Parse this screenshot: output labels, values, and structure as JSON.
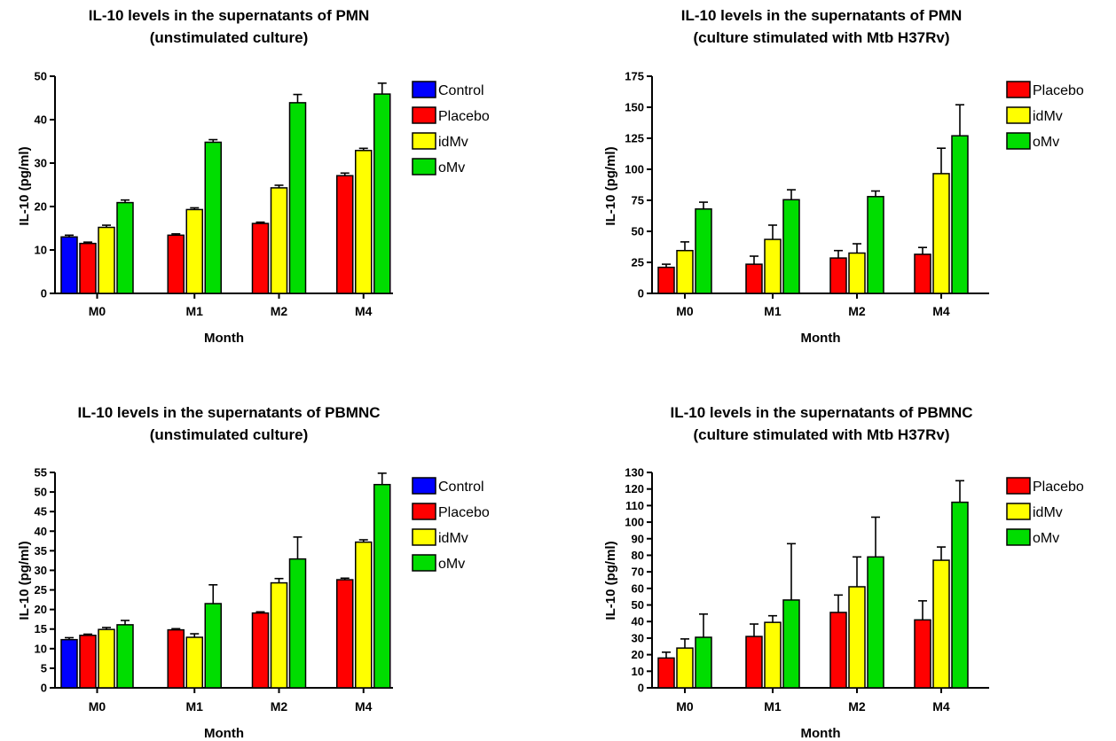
{
  "chart_data": [
    {
      "type": "bar",
      "title": "IL-10 levels in the supernatants of  PMN",
      "subtitle": "(unstimulated culture)",
      "xlabel": "Month",
      "ylabel": "IL-10 (pg/ml)",
      "categories": [
        "M0",
        "M1",
        "M2",
        "M4"
      ],
      "ylim": [
        0,
        50
      ],
      "yticks": [
        0,
        10,
        20,
        30,
        40,
        50
      ],
      "legend_position": "right",
      "error_bars": true,
      "series": [
        {
          "name": "Control",
          "color": "#0000ff",
          "values": [
            13,
            null,
            null,
            null
          ],
          "errors": [
            0.4,
            null,
            null,
            null
          ]
        },
        {
          "name": "Placebo",
          "color": "#ff0000",
          "values": [
            11.5,
            13.4,
            16.1,
            27.1
          ],
          "errors": [
            0.3,
            0.3,
            0.3,
            0.6
          ]
        },
        {
          "name": "idMv",
          "color": "#ffff00",
          "values": [
            15.2,
            19.3,
            24.3,
            32.9
          ],
          "errors": [
            0.5,
            0.4,
            0.6,
            0.5
          ]
        },
        {
          "name": "oMv",
          "color": "#00dd00",
          "values": [
            20.9,
            34.8,
            43.9,
            45.9
          ],
          "errors": [
            0.6,
            0.6,
            1.9,
            2.5
          ]
        }
      ]
    },
    {
      "type": "bar",
      "title": "IL-10 levels in the supernatants of  PMN",
      "subtitle": "(culture stimulated with Mtb H37Rv)",
      "xlabel": "Month",
      "ylabel": "IL-10 (pg/ml)",
      "categories": [
        "M0",
        "M1",
        "M2",
        "M4"
      ],
      "ylim": [
        0,
        175
      ],
      "yticks": [
        0,
        25,
        50,
        75,
        100,
        125,
        150,
        175
      ],
      "legend_position": "right",
      "error_bars": true,
      "series": [
        {
          "name": "Placebo",
          "color": "#ff0000",
          "values": [
            21,
            23.5,
            28.5,
            31.5
          ],
          "errors": [
            2.5,
            6.5,
            6,
            5.5
          ]
        },
        {
          "name": "idMv",
          "color": "#ffff00",
          "values": [
            34.5,
            43.5,
            32.5,
            96.5
          ],
          "errors": [
            7,
            11.5,
            7.5,
            20.5
          ]
        },
        {
          "name": "oMv",
          "color": "#00dd00",
          "values": [
            68,
            75.5,
            78,
            127
          ],
          "errors": [
            5.5,
            8,
            4.5,
            25
          ]
        }
      ]
    },
    {
      "type": "bar",
      "title": "IL-10 levels in the supernatants of  PBMNC",
      "subtitle": "(unstimulated culture)",
      "xlabel": "Month",
      "ylabel": "IL-10 (pg/ml)",
      "categories": [
        "M0",
        "M1",
        "M2",
        "M4"
      ],
      "ylim": [
        0,
        55
      ],
      "yticks": [
        0,
        5,
        10,
        15,
        20,
        25,
        30,
        35,
        40,
        45,
        50,
        55
      ],
      "legend_position": "right",
      "error_bars": true,
      "series": [
        {
          "name": "Control",
          "color": "#0000ff",
          "values": [
            12.3,
            null,
            null,
            null
          ],
          "errors": [
            0.5,
            null,
            null,
            null
          ]
        },
        {
          "name": "Placebo",
          "color": "#ff0000",
          "values": [
            13.4,
            14.8,
            19.1,
            27.6
          ],
          "errors": [
            0.3,
            0.3,
            0.3,
            0.4
          ]
        },
        {
          "name": "idMv",
          "color": "#ffff00",
          "values": [
            14.9,
            12.9,
            26.8,
            37.2
          ],
          "errors": [
            0.5,
            0.9,
            1.1,
            0.6
          ]
        },
        {
          "name": "oMv",
          "color": "#00dd00",
          "values": [
            16.1,
            21.5,
            32.9,
            51.9
          ],
          "errors": [
            1.1,
            4.8,
            5.6,
            2.9
          ]
        }
      ]
    },
    {
      "type": "bar",
      "title": "IL-10 levels in the supernatants of  PBMNC",
      "subtitle": "(culture stimulated with Mtb H37Rv)",
      "xlabel": "Month",
      "ylabel": "IL-10 (pg/ml)",
      "categories": [
        "M0",
        "M1",
        "M2",
        "M4"
      ],
      "ylim": [
        0,
        130
      ],
      "yticks": [
        0,
        10,
        20,
        30,
        40,
        50,
        60,
        70,
        80,
        90,
        100,
        110,
        120,
        130
      ],
      "legend_position": "right",
      "error_bars": true,
      "series": [
        {
          "name": "Placebo",
          "color": "#ff0000",
          "values": [
            18,
            31,
            45.5,
            41
          ],
          "errors": [
            3.5,
            7.5,
            10.5,
            11.5
          ]
        },
        {
          "name": "idMv",
          "color": "#ffff00",
          "values": [
            24,
            39.5,
            61,
            77
          ],
          "errors": [
            5.5,
            4,
            18,
            8
          ]
        },
        {
          "name": "oMv",
          "color": "#00dd00",
          "values": [
            30.5,
            53,
            79,
            112
          ],
          "errors": [
            14,
            34,
            24,
            13
          ]
        }
      ]
    }
  ]
}
